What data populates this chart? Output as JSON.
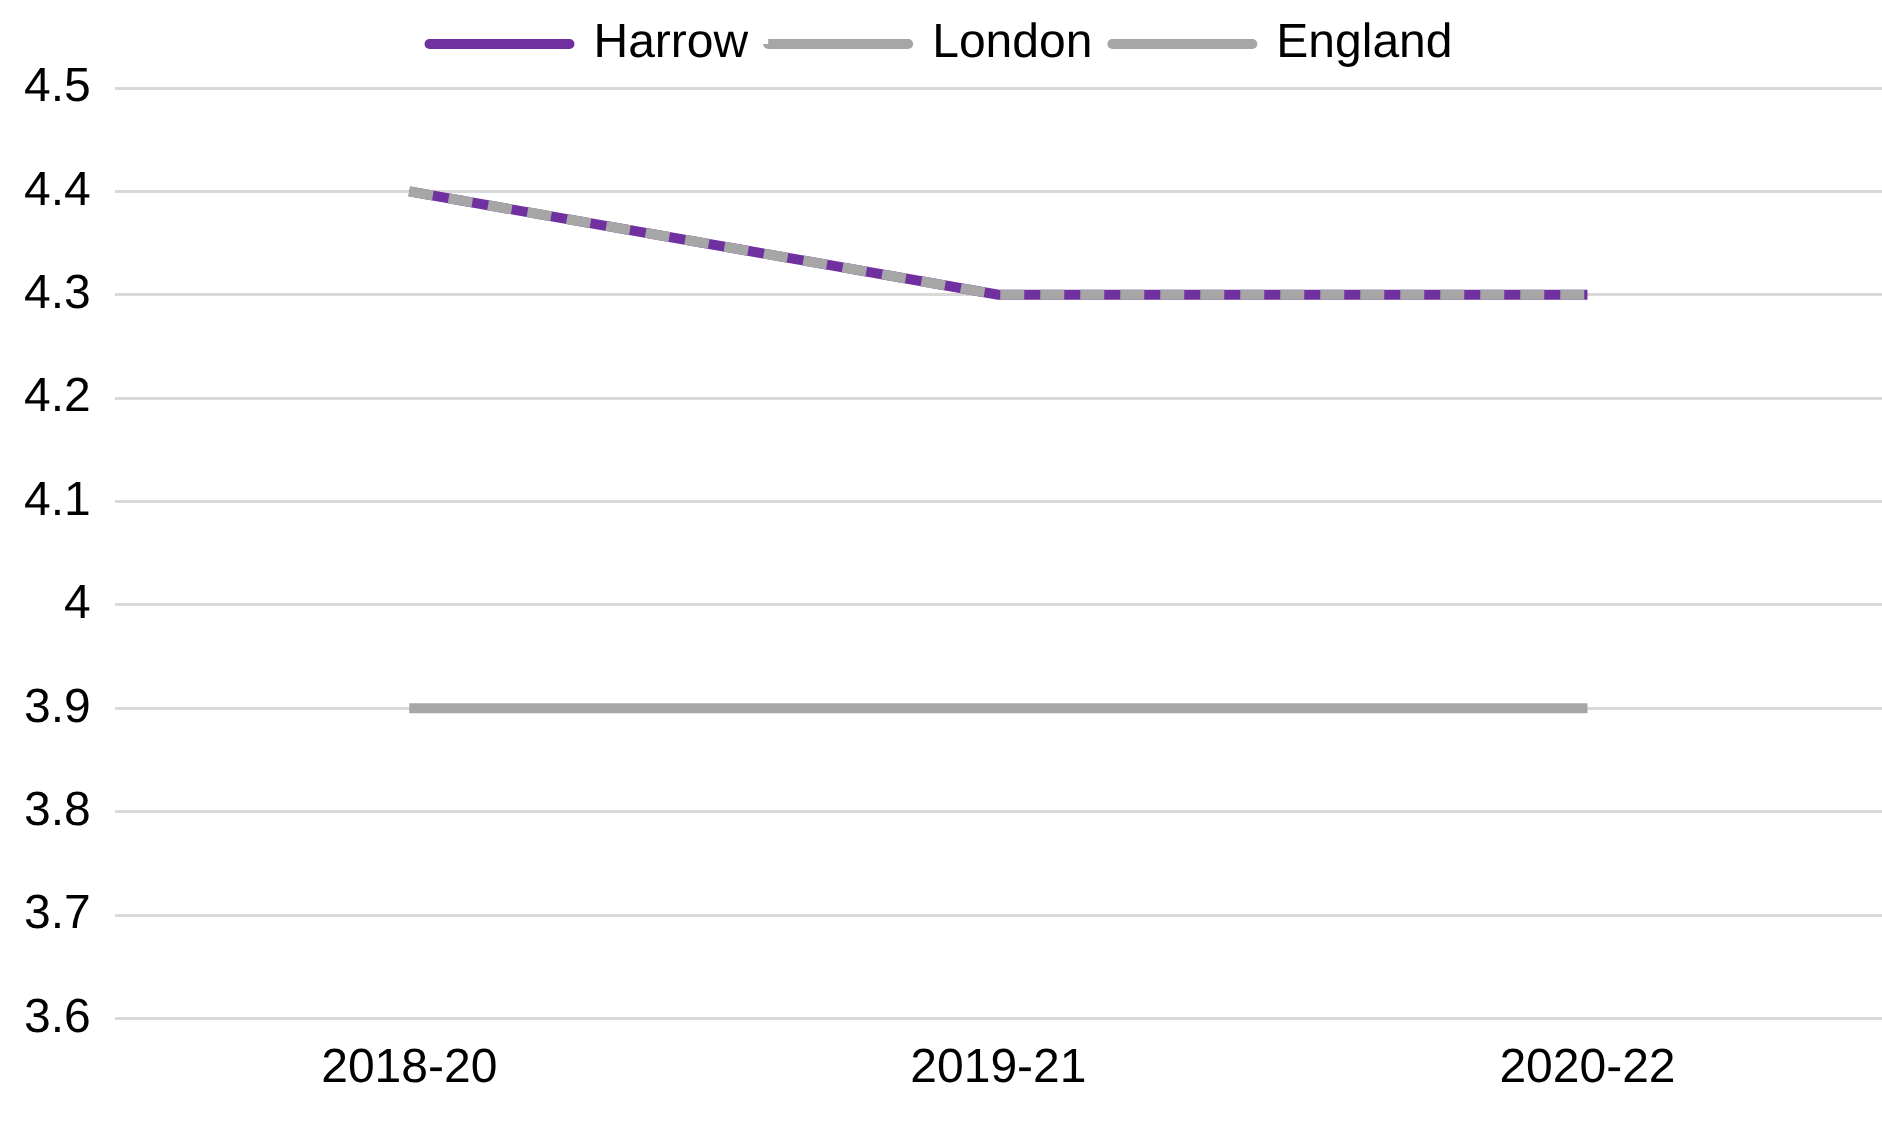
{
  "chart_data": {
    "type": "line",
    "categories": [
      "2018-20",
      "2019-21",
      "2020-22"
    ],
    "series": [
      {
        "name": "Harrow",
        "color": "#7030a0",
        "values": [
          4.4,
          4.3,
          4.3
        ],
        "line_style": "solid"
      },
      {
        "name": "London",
        "color": "#a6a6a6",
        "values": [
          4.4,
          4.3,
          4.3
        ],
        "line_style": "dashed"
      },
      {
        "name": "England",
        "color": "#a6a6a6",
        "values": [
          3.9,
          3.9,
          3.9
        ],
        "line_style": "solid"
      }
    ],
    "ylim": [
      3.6,
      4.5
    ],
    "yticks": [
      3.6,
      3.7,
      3.8,
      3.9,
      4,
      4.1,
      4.2,
      4.3,
      4.4,
      4.5
    ],
    "grid": "y",
    "legend": "top",
    "marker": "none"
  }
}
